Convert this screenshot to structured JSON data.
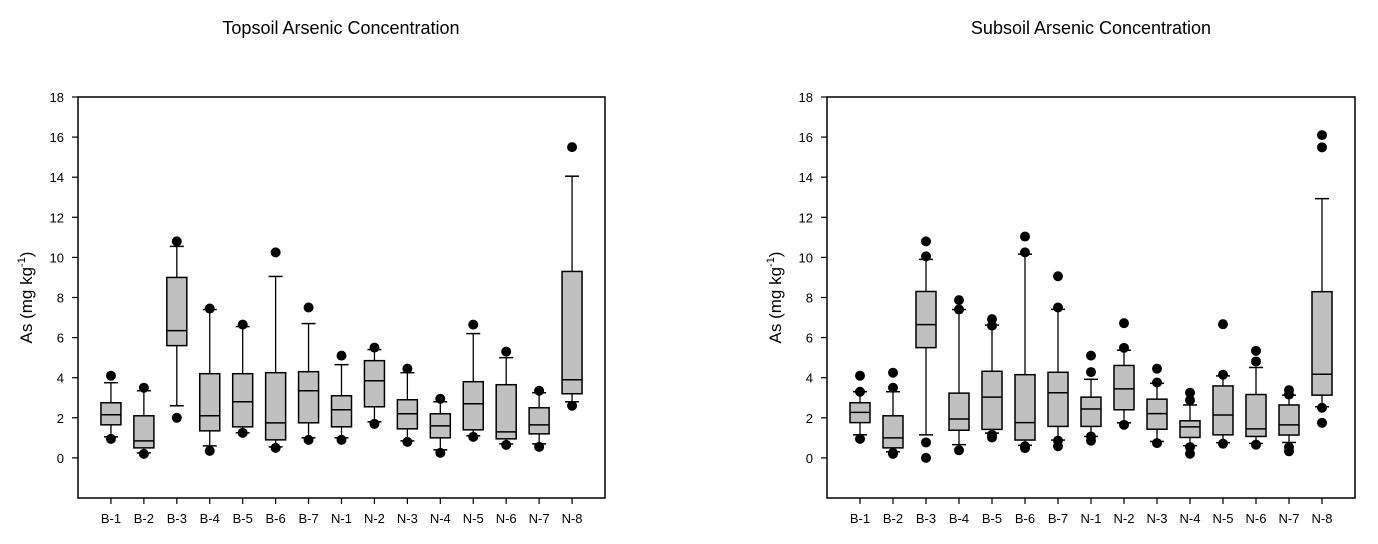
{
  "chart_data": [
    {
      "type": "boxplot",
      "title": "Topsoil  Arsenic Concentration",
      "xlabel": "",
      "ylabel": {
        "main": "As (mg kg",
        "sup": "-1",
        "close": ")"
      },
      "ylim": [
        -2,
        18
      ],
      "yticks": [
        0,
        2,
        4,
        6,
        8,
        10,
        12,
        14,
        16,
        18
      ],
      "categories": [
        "B-1",
        "B-2",
        "B-3",
        "B-4",
        "B-5",
        "B-6",
        "B-7",
        "N-1",
        "N-2",
        "N-3",
        "N-4",
        "N-5",
        "N-6",
        "N-7",
        "N-8"
      ],
      "box_color": "#c0c0c0",
      "boxes": [
        {
          "wl": 1.05,
          "q1": 1.65,
          "med": 2.15,
          "q3": 2.75,
          "wh": 3.75,
          "out": [
            0.95,
            4.1
          ]
        },
        {
          "wl": 0.25,
          "q1": 0.5,
          "med": 0.85,
          "q3": 2.1,
          "wh": 3.35,
          "out": [
            0.2,
            3.5
          ]
        },
        {
          "wl": 2.6,
          "q1": 5.6,
          "med": 6.35,
          "q3": 9.0,
          "wh": 10.55,
          "out": [
            2.0,
            10.8
          ]
        },
        {
          "wl": 0.6,
          "q1": 1.35,
          "med": 2.1,
          "q3": 4.2,
          "wh": 7.4,
          "out": [
            0.35,
            7.45
          ]
        },
        {
          "wl": 1.25,
          "q1": 1.55,
          "med": 2.8,
          "q3": 4.2,
          "wh": 6.55,
          "out": [
            1.25,
            6.65
          ]
        },
        {
          "wl": 0.55,
          "q1": 0.9,
          "med": 1.75,
          "q3": 4.25,
          "wh": 9.05,
          "out": [
            0.5,
            10.25
          ]
        },
        {
          "wl": 1.0,
          "q1": 1.75,
          "med": 3.35,
          "q3": 4.3,
          "wh": 6.7,
          "out": [
            0.9,
            7.5
          ]
        },
        {
          "wl": 1.0,
          "q1": 1.55,
          "med": 2.4,
          "q3": 3.1,
          "wh": 4.65,
          "out": [
            0.9,
            5.1
          ]
        },
        {
          "wl": 1.8,
          "q1": 2.55,
          "med": 3.85,
          "q3": 4.85,
          "wh": 5.4,
          "out": [
            1.7,
            5.5
          ]
        },
        {
          "wl": 0.85,
          "q1": 1.45,
          "med": 2.2,
          "q3": 2.9,
          "wh": 4.25,
          "out": [
            0.8,
            4.45
          ]
        },
        {
          "wl": 0.4,
          "q1": 1.0,
          "med": 1.6,
          "q3": 2.2,
          "wh": 2.8,
          "out": [
            0.25,
            2.95
          ]
        },
        {
          "wl": 1.1,
          "q1": 1.4,
          "med": 2.7,
          "q3": 3.8,
          "wh": 6.2,
          "out": [
            1.05,
            6.65
          ]
        },
        {
          "wl": 0.7,
          "q1": 0.95,
          "med": 1.3,
          "q3": 3.65,
          "wh": 5.0,
          "out": [
            0.65,
            5.3
          ]
        },
        {
          "wl": 0.7,
          "q1": 1.2,
          "med": 1.65,
          "q3": 2.5,
          "wh": 3.25,
          "out": [
            0.55,
            3.35
          ]
        },
        {
          "wl": 2.8,
          "q1": 3.2,
          "med": 3.9,
          "q3": 9.3,
          "wh": 14.05,
          "out": [
            2.6,
            15.5
          ]
        }
      ]
    },
    {
      "type": "boxplot",
      "title": "Subsoil Arsenic Concentration",
      "xlabel": "",
      "ylabel": {
        "main": "As (mg kg",
        "sup": "-1",
        "close": ")"
      },
      "ylim": [
        -2,
        18
      ],
      "yticks": [
        0,
        2,
        4,
        6,
        8,
        10,
        12,
        14,
        16,
        18
      ],
      "categories": [
        "B-1",
        "B-2",
        "B-3",
        "B-4",
        "B-5",
        "B-6",
        "B-7",
        "N-1",
        "N-2",
        "N-3",
        "N-4",
        "N-5",
        "N-6",
        "N-7",
        "N-8"
      ],
      "box_color": "#c0c0c0",
      "boxes": [
        {
          "wl": 1.15,
          "q1": 1.76,
          "med": 2.27,
          "q3": 2.75,
          "wh": 3.3,
          "out": [
            0.95,
            3.3,
            4.1
          ]
        },
        {
          "wl": 0.3,
          "q1": 0.5,
          "med": 1.0,
          "q3": 2.1,
          "wh": 3.3,
          "out": [
            0.2,
            0.25,
            3.5,
            4.25
          ]
        },
        {
          "wl": 1.15,
          "q1": 5.5,
          "med": 6.65,
          "q3": 8.3,
          "wh": 9.9,
          "out": [
            0.0,
            0.77,
            10.05,
            10.8
          ]
        },
        {
          "wl": 0.66,
          "q1": 1.38,
          "med": 1.94,
          "q3": 3.23,
          "wh": 7.4,
          "out": [
            0.38,
            7.4,
            7.87
          ]
        },
        {
          "wl": 1.24,
          "q1": 1.42,
          "med": 3.03,
          "q3": 4.32,
          "wh": 6.62,
          "out": [
            1.02,
            1.15,
            6.6,
            6.92
          ]
        },
        {
          "wl": 0.63,
          "q1": 0.89,
          "med": 1.76,
          "q3": 4.15,
          "wh": 10.16,
          "out": [
            0.49,
            0.58,
            10.25,
            11.04
          ]
        },
        {
          "wl": 0.89,
          "q1": 1.57,
          "med": 3.25,
          "q3": 4.27,
          "wh": 7.41,
          "out": [
            0.58,
            0.86,
            7.5,
            9.06
          ]
        },
        {
          "wl": 1.07,
          "q1": 1.57,
          "med": 2.44,
          "q3": 3.03,
          "wh": 3.92,
          "out": [
            0.86,
            1.07,
            4.28,
            5.1
          ]
        },
        {
          "wl": 1.75,
          "q1": 2.4,
          "med": 3.44,
          "q3": 4.61,
          "wh": 5.37,
          "out": [
            1.65,
            5.49,
            6.72
          ]
        },
        {
          "wl": 0.82,
          "q1": 1.43,
          "med": 2.21,
          "q3": 2.93,
          "wh": 3.72,
          "out": [
            0.74,
            3.76,
            4.45
          ]
        },
        {
          "wl": 0.61,
          "q1": 1.02,
          "med": 1.55,
          "q3": 1.85,
          "wh": 2.64,
          "out": [
            0.21,
            0.54,
            2.88,
            3.25
          ]
        },
        {
          "wl": 0.76,
          "q1": 1.15,
          "med": 2.14,
          "q3": 3.59,
          "wh": 4.09,
          "out": [
            0.71,
            4.15,
            6.67
          ]
        },
        {
          "wl": 0.72,
          "q1": 1.07,
          "med": 1.45,
          "q3": 3.16,
          "wh": 4.51,
          "out": [
            0.66,
            4.81,
            5.34
          ]
        },
        {
          "wl": 0.77,
          "q1": 1.14,
          "med": 1.65,
          "q3": 2.64,
          "wh": 3.13,
          "out": [
            0.33,
            0.53,
            3.16,
            3.38
          ]
        },
        {
          "wl": 2.55,
          "q1": 3.13,
          "med": 4.17,
          "q3": 8.29,
          "wh": 12.93,
          "out": [
            1.75,
            2.5,
            15.49,
            16.1
          ]
        }
      ]
    }
  ]
}
